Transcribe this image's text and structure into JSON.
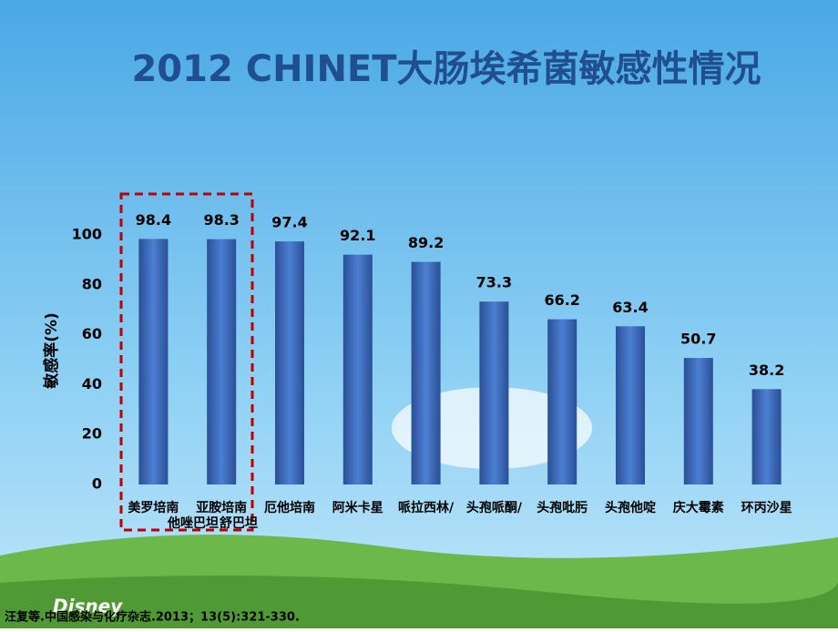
{
  "chart_data": {
    "type": "bar",
    "title": "2012 CHINET大肠埃希菌敏感性情况",
    "ylabel": "敏感率(%)",
    "categories": [
      "美罗培南",
      "亚胺培南",
      "厄他培南",
      "阿米卡星",
      "哌拉西林/",
      "头孢哌酮/",
      "头孢吡肟",
      "头孢他啶",
      "庆大霉素",
      "环丙沙星"
    ],
    "category_second_lines": [
      "他唑巴坦",
      "舒巴坦"
    ],
    "values": [
      98.4,
      98.3,
      97.4,
      92.1,
      89.2,
      73.3,
      66.2,
      63.4,
      50.7,
      38.2
    ],
    "color": "#3563b5",
    "ylim": [
      0,
      100
    ],
    "yticks": [
      0,
      20,
      40,
      60,
      80,
      100
    ],
    "grid": false
  },
  "citation": "汪复等.中国感染与化疗杂志.2013；13(5):321-330.",
  "logo": "Disney"
}
